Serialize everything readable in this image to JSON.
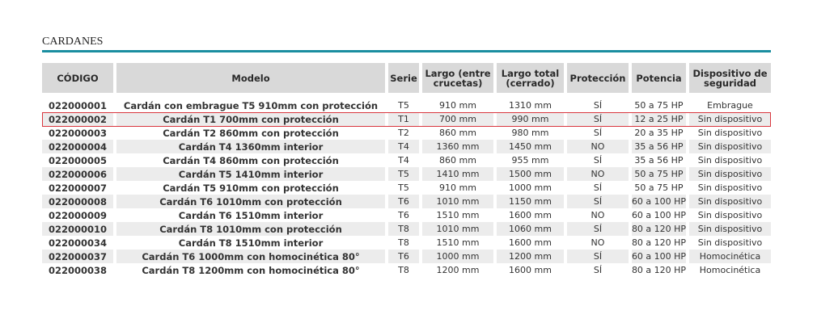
{
  "header": {
    "title": "CARDANES"
  },
  "table": {
    "columns": [
      "CÓDIGO",
      "Modelo",
      "Serie",
      "Largo (entre crucetas)",
      "Largo total (cerrado)",
      "Protección",
      "Potencia",
      "Dispositivo de seguridad"
    ],
    "rows": [
      [
        "022000001",
        "Cardán con embrague T5 910mm con protección",
        "T5",
        "910 mm",
        "1310 mm",
        "SÍ",
        "50 a 75 HP",
        "Embrague"
      ],
      [
        "022000002",
        "Cardán T1 700mm con protección",
        "T1",
        "700 mm",
        "990 mm",
        "SÍ",
        "12 a 25 HP",
        "Sin dispositivo"
      ],
      [
        "022000003",
        "Cardán T2 860mm con protección",
        "T2",
        "860 mm",
        "980 mm",
        "SÍ",
        "20 a 35 HP",
        "Sin dispositivo"
      ],
      [
        "022000004",
        "Cardán T4 1360mm interior",
        "T4",
        "1360 mm",
        "1450 mm",
        "NO",
        "35 a 56 HP",
        "Sin dispositivo"
      ],
      [
        "022000005",
        "Cardán T4 860mm con protección",
        "T4",
        "860 mm",
        "955 mm",
        "SÍ",
        "35 a 56 HP",
        "Sin dispositivo"
      ],
      [
        "022000006",
        "Cardán T5 1410mm interior",
        "T5",
        "1410 mm",
        "1500 mm",
        "NO",
        "50 a 75 HP",
        "Sin dispositivo"
      ],
      [
        "022000007",
        "Cardán T5 910mm con protección",
        "T5",
        "910 mm",
        "1000 mm",
        "SÍ",
        "50 a 75 HP",
        "Sin dispositivo"
      ],
      [
        "022000008",
        "Cardán T6 1010mm con protección",
        "T6",
        "1010 mm",
        "1150 mm",
        "SÍ",
        "60 a 100 HP",
        "Sin dispositivo"
      ],
      [
        "022000009",
        "Cardán T6 1510mm interior",
        "T6",
        "1510 mm",
        "1600 mm",
        "NO",
        "60 a 100 HP",
        "Sin dispositivo"
      ],
      [
        "022000010",
        "Cardán T8 1010mm con protección",
        "T8",
        "1010 mm",
        "1060 mm",
        "SÍ",
        "80 a 120 HP",
        "Sin dispositivo"
      ],
      [
        "022000034",
        "Cardán T8 1510mm interior",
        "T8",
        "1510 mm",
        "1600 mm",
        "NO",
        "80 a 120 HP",
        "Sin dispositivo"
      ],
      [
        "022000037",
        "Cardán T6 1000mm con homocinética 80°",
        "T6",
        "1000 mm",
        "1200 mm",
        "SÍ",
        "60 a 100 HP",
        "Homocinética"
      ],
      [
        "022000038",
        "Cardán T8 1200mm con homocinética 80°",
        "T8",
        "1200 mm",
        "1600 mm",
        "SÍ",
        "80 a 120 HP",
        "Homocinética"
      ]
    ]
  }
}
